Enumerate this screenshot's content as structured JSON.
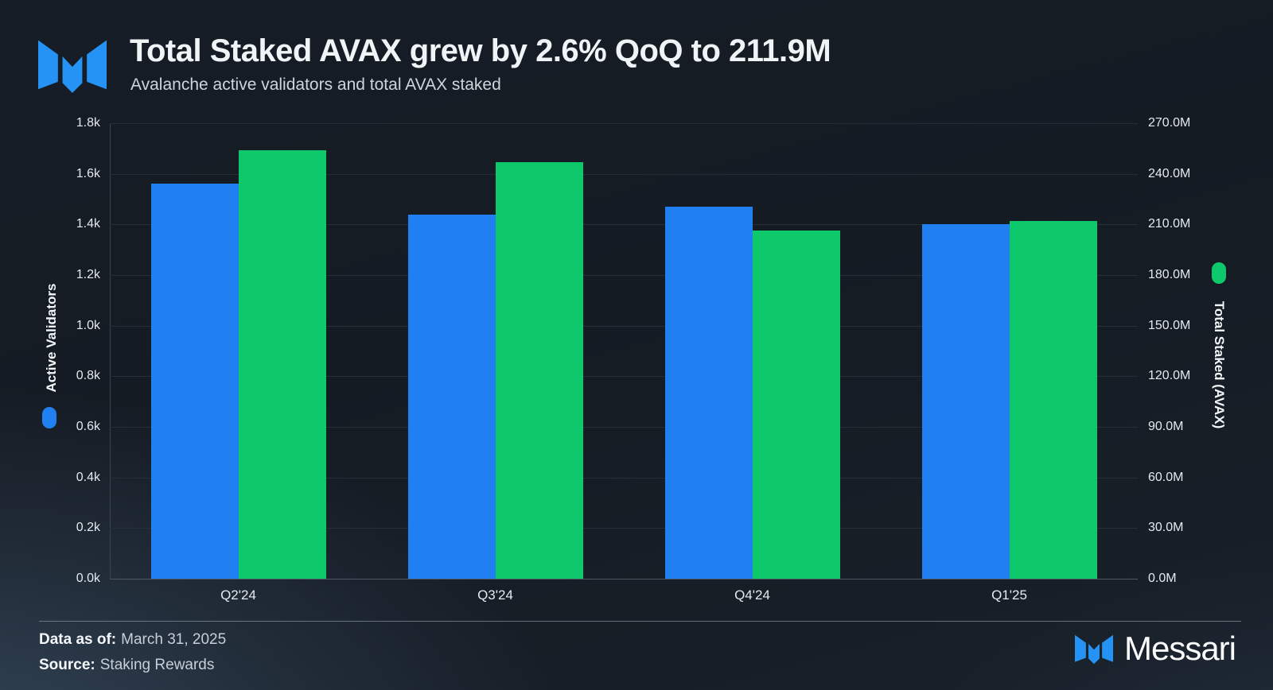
{
  "footer": {
    "data_as_of_label": "Data as of:",
    "data_as_of_value": "March 31, 2025",
    "source_label": "Source:",
    "source_value": "Staking Rewards",
    "brand_wordmark": "Messari"
  },
  "colors": {
    "validators_blue": "#2080f1",
    "staked_green": "#0dc96c",
    "logo_blue": "#2493f5"
  },
  "chart_data": {
    "type": "bar",
    "title": "Total Staked AVAX grew by 2.6% QoQ to 211.9M",
    "subtitle": "Avalanche active validators and total AVAX staked",
    "categories": [
      "Q2'24",
      "Q3'24",
      "Q4'24",
      "Q1'25"
    ],
    "series": [
      {
        "name": "Active Validators",
        "axis": "left",
        "color": "#2080f1",
        "unit": "validators",
        "values": [
          1560,
          1440,
          1470,
          1400
        ]
      },
      {
        "name": "Total Staked (AVAX)",
        "axis": "right",
        "color": "#0dc96c",
        "unit": "million AVAX",
        "values": [
          254.0,
          247.0,
          206.5,
          211.9
        ]
      }
    ],
    "left_axis": {
      "label": "Active Validators",
      "min": 0,
      "max": 1800,
      "tick_step": 200,
      "ticks": [
        "1.8k",
        "1.6k",
        "1.4k",
        "1.2k",
        "1.0k",
        "0.8k",
        "0.6k",
        "0.4k",
        "0.2k",
        "0.0k"
      ]
    },
    "right_axis": {
      "label": "Total Staked (AVAX)",
      "min": 0,
      "max": 270,
      "tick_step": 30,
      "ticks": [
        "270.0M",
        "240.0M",
        "210.0M",
        "180.0M",
        "150.0M",
        "120.0M",
        "90.0M",
        "60.0M",
        "30.0M",
        "0.0M"
      ]
    },
    "xlabel": "",
    "grid": true,
    "legend_position": "axis-titles"
  }
}
